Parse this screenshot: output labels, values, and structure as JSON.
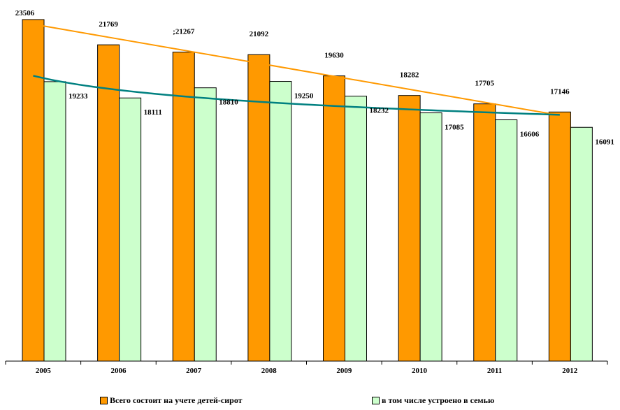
{
  "chart_data": {
    "type": "bar",
    "title": "",
    "xlabel": "",
    "ylabel": "",
    "categories": [
      "2005",
      "2006",
      "2007",
      "2008",
      "2009",
      "2010",
      "2011",
      "2012"
    ],
    "ylim": [
      0,
      23506
    ],
    "series": [
      {
        "name": "Всего состоит на учете детей-сирот",
        "values": [
          23506,
          21769,
          21267,
          21092,
          19630,
          18282,
          17705,
          17146
        ],
        "labels": [
          "23506",
          "21769",
          ";21267",
          "21092",
          "19630",
          "18282",
          "17705",
          "17146"
        ],
        "color": "#FF9900"
      },
      {
        "name": "в том числе устроено в семью",
        "values": [
          19233,
          18111,
          18810,
          19250,
          18232,
          17085,
          16606,
          16091
        ],
        "labels": [
          "19233",
          "18111",
          "18810",
          "19250",
          "18232",
          "17085",
          "16606",
          "16091"
        ],
        "color": "#CCFFCC"
      }
    ],
    "trendlines": [
      {
        "series": 0,
        "kind": "linear",
        "color": "#FF9900"
      },
      {
        "series": 1,
        "kind": "log",
        "color": "#008080"
      }
    ],
    "grid": false,
    "legend_position": "bottom"
  }
}
